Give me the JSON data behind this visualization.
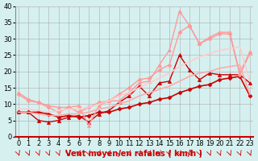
{
  "x": [
    0,
    1,
    2,
    3,
    4,
    5,
    6,
    7,
    8,
    9,
    10,
    11,
    12,
    13,
    14,
    15,
    16,
    17,
    18,
    19,
    20,
    21,
    22,
    23
  ],
  "series": [
    {
      "y": [
        7.5,
        7.5,
        7.5,
        7.0,
        6.0,
        6.5,
        6.0,
        6.5,
        7.5,
        7.5,
        8.5,
        9.0,
        10.0,
        10.5,
        11.5,
        12.0,
        13.5,
        14.5,
        15.5,
        16.0,
        17.5,
        18.0,
        18.5,
        12.5
      ],
      "color": "#cc0000",
      "marker": "D",
      "markersize": 2.5,
      "linewidth": 1.2,
      "linestyle": "-"
    },
    {
      "y": [
        7.5,
        7.5,
        5.0,
        4.5,
        5.0,
        6.0,
        6.5,
        4.5,
        7.0,
        8.0,
        10.5,
        12.5,
        15.5,
        12.5,
        16.5,
        17.0,
        25.0,
        20.5,
        17.5,
        19.5,
        19.0,
        19.0,
        19.0,
        16.5
      ],
      "color": "#cc0000",
      "marker": "^",
      "markersize": 3.0,
      "linewidth": 1.0,
      "linestyle": "-"
    },
    {
      "y": [
        13.0,
        11.0,
        10.5,
        9.0,
        7.5,
        9.0,
        7.5,
        9.0,
        10.5,
        11.0,
        13.0,
        15.0,
        17.5,
        18.0,
        20.5,
        22.0,
        32.0,
        34.0,
        28.5,
        30.0,
        31.5,
        31.5,
        19.0,
        25.5
      ],
      "color": "#ff9999",
      "marker": "D",
      "markersize": 2.5,
      "linewidth": 1.0,
      "linestyle": "-"
    },
    {
      "y": [
        13.5,
        11.5,
        10.5,
        9.5,
        9.0,
        9.0,
        9.5,
        3.5,
        9.5,
        11.0,
        11.0,
        13.5,
        16.5,
        17.0,
        22.0,
        26.5,
        38.5,
        34.0,
        28.5,
        30.5,
        32.0,
        32.0,
        19.5,
        26.0
      ],
      "color": "#ff9999",
      "marker": "^",
      "markersize": 3.0,
      "linewidth": 1.0,
      "linestyle": "-"
    },
    {
      "y": [
        7.5,
        7.5,
        7.0,
        6.5,
        6.5,
        7.0,
        7.0,
        7.5,
        8.5,
        9.0,
        10.0,
        11.0,
        12.5,
        13.5,
        14.5,
        15.5,
        17.0,
        18.5,
        19.5,
        20.0,
        21.0,
        21.5,
        22.0,
        13.0
      ],
      "color": "#ffaaaa",
      "marker": null,
      "markersize": 0,
      "linewidth": 1.2,
      "linestyle": "-"
    },
    {
      "y": [
        8.5,
        8.5,
        8.0,
        7.5,
        8.0,
        8.5,
        8.5,
        9.0,
        10.0,
        11.0,
        12.5,
        13.5,
        15.0,
        16.5,
        18.0,
        19.5,
        21.5,
        23.0,
        24.5,
        25.5,
        26.5,
        27.0,
        27.5,
        17.0
      ],
      "color": "#ffcccc",
      "marker": null,
      "markersize": 0,
      "linewidth": 1.2,
      "linestyle": "-"
    }
  ],
  "xlabel": "Vent moyen/en rafales ( km/h )",
  "xlim": [
    0,
    23
  ],
  "ylim": [
    0,
    40
  ],
  "xticks": [
    0,
    1,
    2,
    3,
    4,
    5,
    6,
    7,
    8,
    9,
    10,
    11,
    12,
    13,
    14,
    15,
    16,
    17,
    18,
    19,
    20,
    21,
    22,
    23
  ],
  "yticks": [
    0,
    5,
    10,
    15,
    20,
    25,
    30,
    35,
    40
  ],
  "bg_color": "#d6f0f0",
  "grid_color": "#aaaaaa",
  "xlabel_color": "#cc0000",
  "xlabel_fontsize": 7,
  "tick_fontsize": 6
}
